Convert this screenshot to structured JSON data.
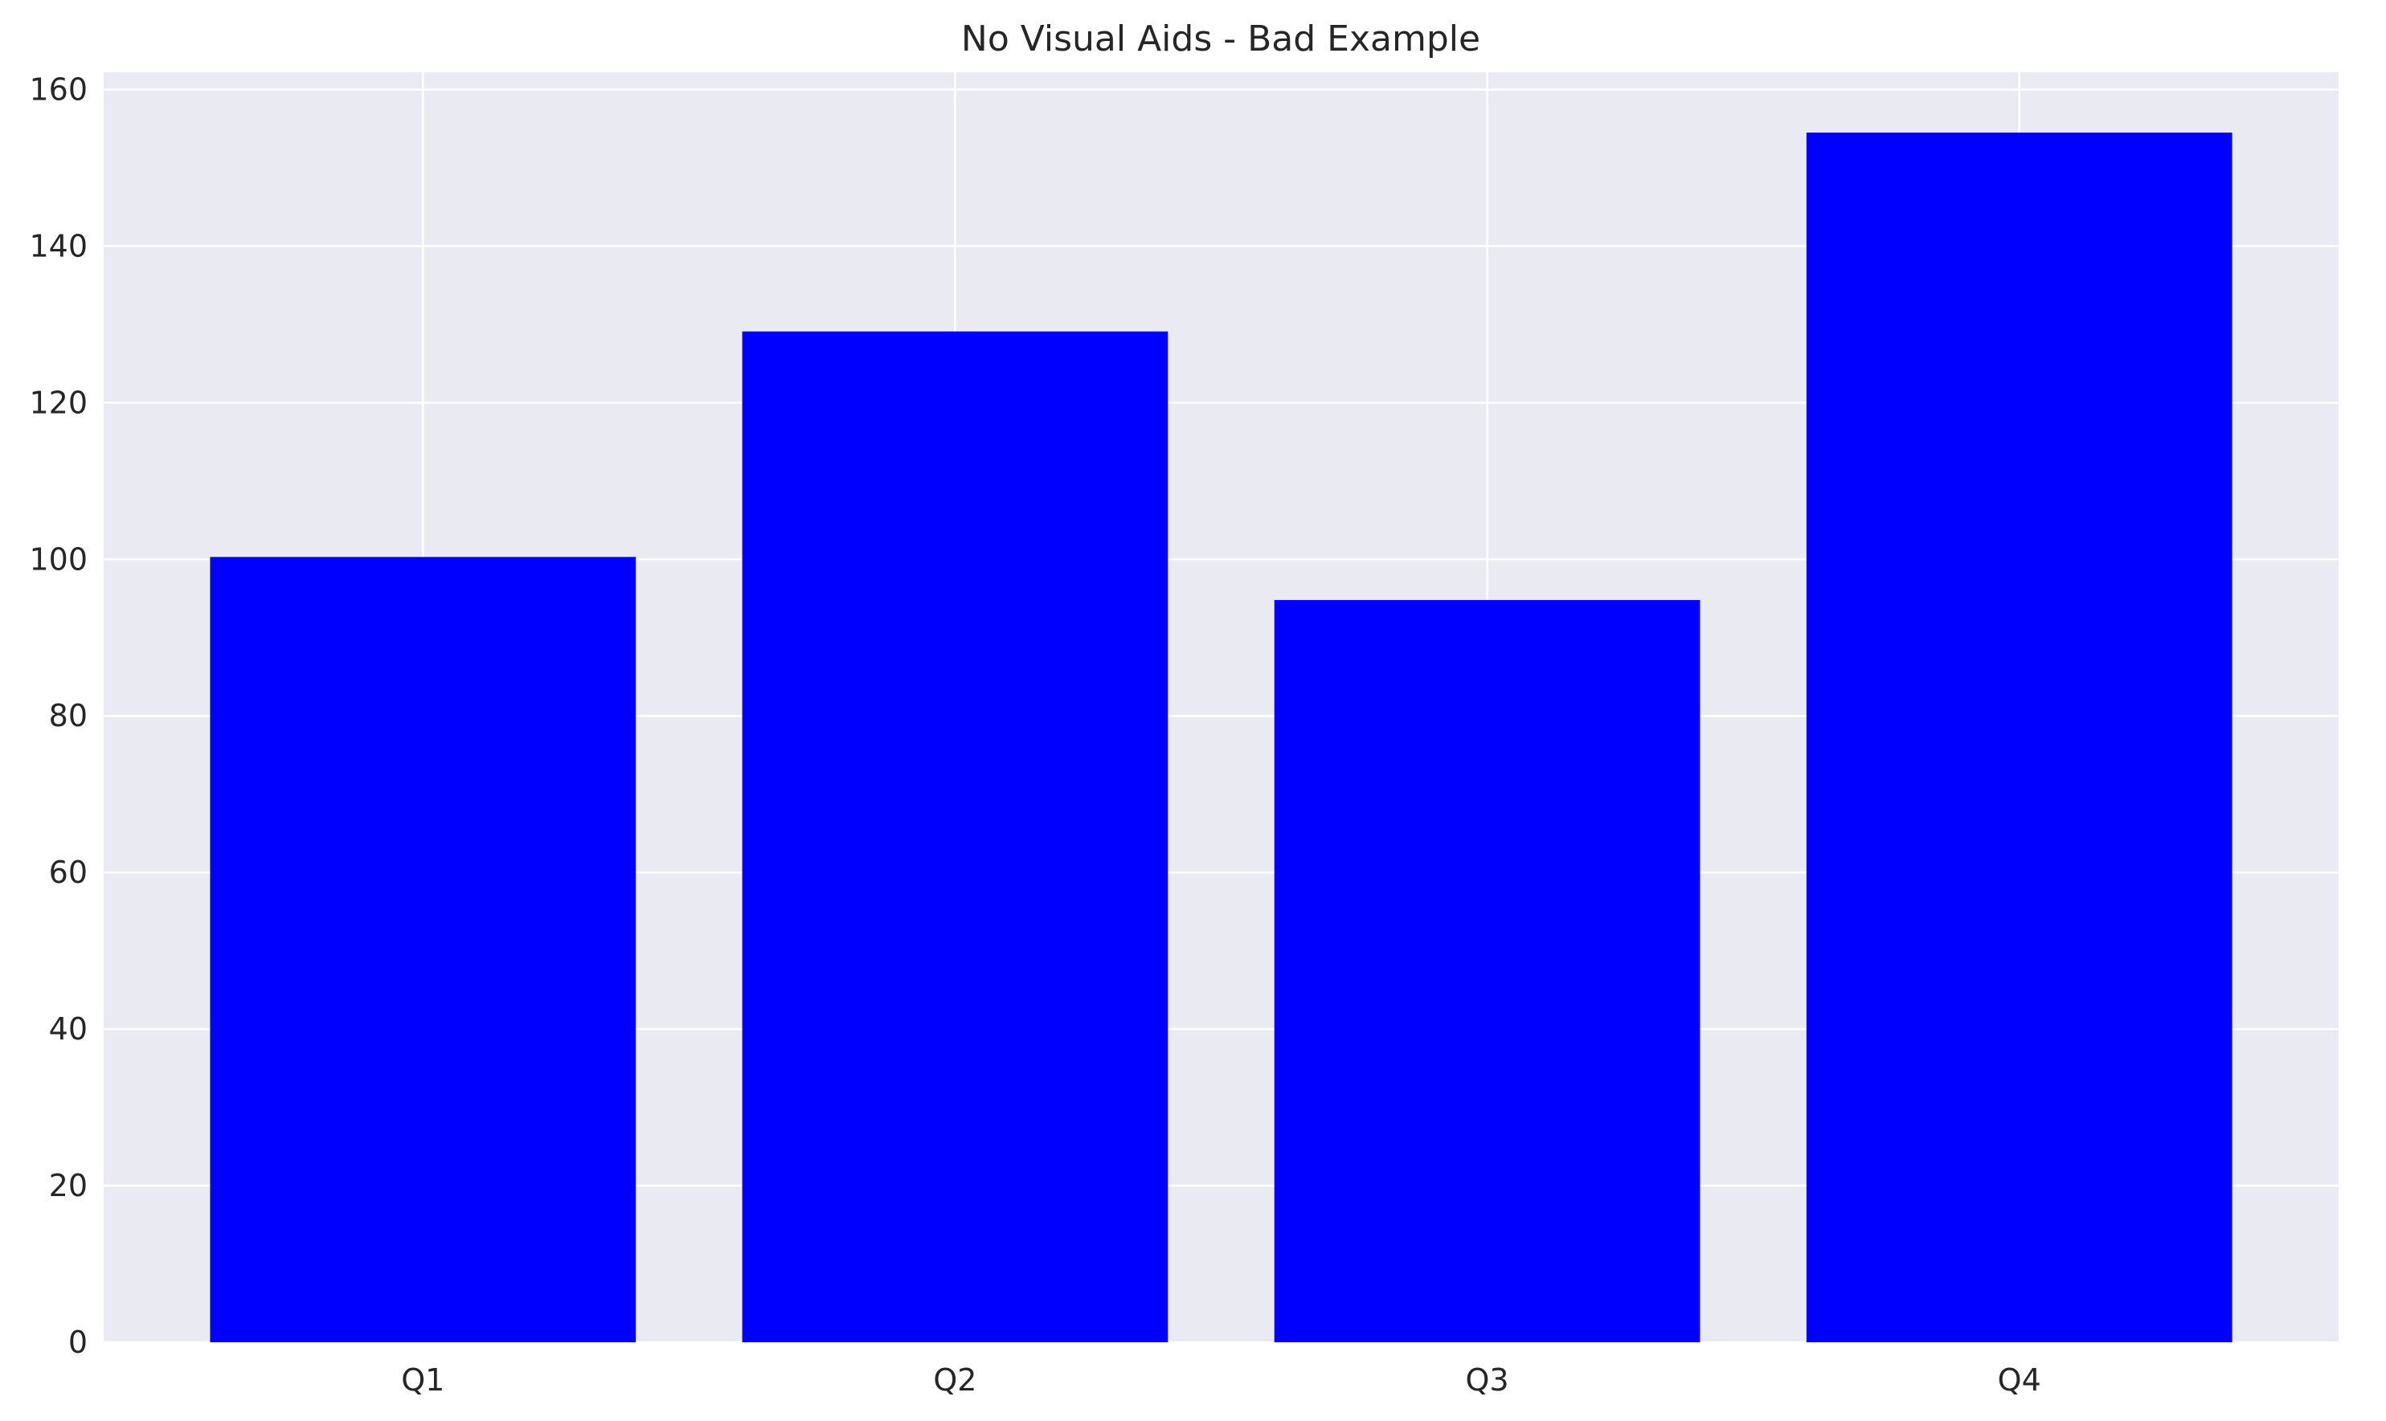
{
  "chart_data": {
    "type": "bar",
    "title": "No Visual Aids - Bad Example",
    "xlabel": "",
    "ylabel": "",
    "categories": [
      "Q1",
      "Q2",
      "Q3",
      "Q4"
    ],
    "values": [
      100.3,
      129.1,
      94.8,
      154.5
    ],
    "ylim": [
      0,
      162.2
    ],
    "yticks": [
      0,
      20,
      40,
      60,
      80,
      100,
      120,
      140,
      160
    ],
    "grid": true,
    "legend": "none",
    "colors": {
      "bar": "#0000ff",
      "plot_background": "#eaeaf2",
      "grid": "#ffffff",
      "text": "#262626"
    }
  }
}
